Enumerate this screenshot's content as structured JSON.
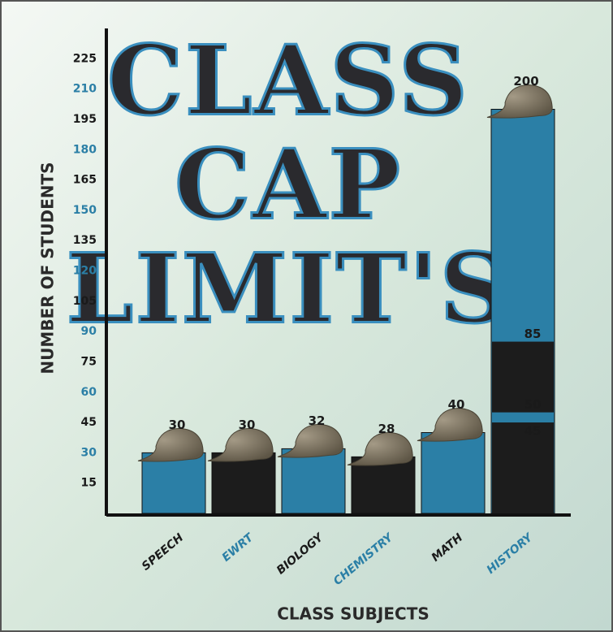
{
  "chart_data": {
    "type": "bar",
    "title_lines": [
      "CLASS",
      "CAP",
      "LIMIT'S"
    ],
    "y_label": "NUMBER OF STUDENTS",
    "x_label": "CLASS SUBJECTS",
    "categories": [
      "SPEECH",
      "EWRT",
      "BIOLOGY",
      "CHEMISTRY",
      "MATH",
      "HISTORY"
    ],
    "values": [
      30,
      30,
      32,
      28,
      40,
      200
    ],
    "colors": [
      "#2b7fa6",
      "#1c1c1c",
      "#2b7fa6",
      "#1c1c1c",
      "#2b7fa6",
      "#2b7fa6"
    ],
    "label_colors": [
      "#1a1a1a",
      "#2b7fa6",
      "#1a1a1a",
      "#2b7fa6",
      "#1a1a1a",
      "#2b7fa6"
    ],
    "history_bands": [
      45,
      50,
      85
    ],
    "history_band_colors": [
      "#1c1c1c",
      "#2b7fa6",
      "#1c1c1c"
    ],
    "ylim": [
      0,
      240
    ],
    "yticks": [
      15,
      30,
      45,
      60,
      75,
      90,
      105,
      120,
      135,
      150,
      165,
      180,
      195,
      210,
      225
    ],
    "ytick_colors": [
      "#1a1a1a",
      "#2b7fa6"
    ]
  }
}
